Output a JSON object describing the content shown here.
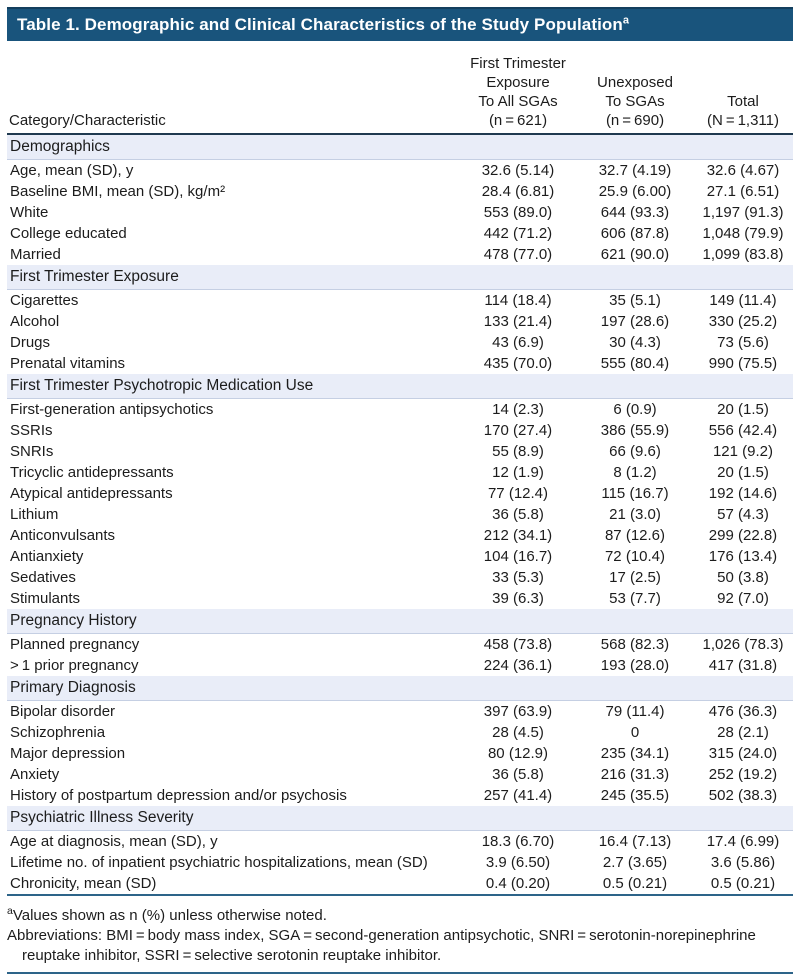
{
  "page": {
    "title": "Table 1. Demographic and Clinical Characteristics of the Study Population",
    "title_superscript": "a"
  },
  "colors": {
    "title_bar_bg": "#19547c",
    "title_text": "#ffffff",
    "section_band_bg": "#e9edf8",
    "section_band_border": "#c5cfe3",
    "header_rule": "#203a50",
    "footer_rule": "#2d6489",
    "text": "#1c1c1c"
  },
  "columns": {
    "category_header": "Category/Characteristic",
    "exposed_lines": [
      "First Trimester",
      "Exposure",
      "To All SGAs",
      "(n = 621)"
    ],
    "unexposed_lines": [
      "Unexposed",
      "To SGAs",
      "(n = 690)"
    ],
    "total_lines": [
      "Total",
      "(N = 1,311)"
    ]
  },
  "sections": [
    {
      "header": "Demographics",
      "rows": [
        {
          "label": "Age, mean (SD), y",
          "values": [
            "32.6 (5.14)",
            "32.7 (4.19)",
            "32.6 (4.67)"
          ]
        },
        {
          "label": "Baseline BMI, mean (SD), kg/m²",
          "values": [
            "28.4 (6.81)",
            "25.9 (6.00)",
            "27.1 (6.51)"
          ]
        },
        {
          "label": "White",
          "values": [
            "553 (89.0)",
            "644 (93.3)",
            "1,197 (91.3)"
          ]
        },
        {
          "label": "College educated",
          "values": [
            "442 (71.2)",
            "606 (87.8)",
            "1,048 (79.9)"
          ]
        },
        {
          "label": "Married",
          "values": [
            "478 (77.0)",
            "621 (90.0)",
            "1,099 (83.8)"
          ]
        }
      ]
    },
    {
      "header": "First Trimester Exposure",
      "rows": [
        {
          "label": "Cigarettes",
          "values": [
            "114 (18.4)",
            "35 (5.1)",
            "149 (11.4)"
          ]
        },
        {
          "label": "Alcohol",
          "values": [
            "133 (21.4)",
            "197 (28.6)",
            "330 (25.2)"
          ]
        },
        {
          "label": "Drugs",
          "values": [
            "43 (6.9)",
            "30 (4.3)",
            "73 (5.6)"
          ]
        },
        {
          "label": "Prenatal vitamins",
          "values": [
            "435 (70.0)",
            "555 (80.4)",
            "990 (75.5)"
          ]
        }
      ]
    },
    {
      "header": "First Trimester Psychotropic Medication Use",
      "rows": [
        {
          "label": "First-generation antipsychotics",
          "values": [
            "14 (2.3)",
            "6 (0.9)",
            "20 (1.5)"
          ]
        },
        {
          "label": "SSRIs",
          "values": [
            "170 (27.4)",
            "386 (55.9)",
            "556 (42.4)"
          ]
        },
        {
          "label": "SNRIs",
          "values": [
            "55 (8.9)",
            "66 (9.6)",
            "121 (9.2)"
          ]
        },
        {
          "label": "Tricyclic antidepressants",
          "values": [
            "12 (1.9)",
            "8 (1.2)",
            "20 (1.5)"
          ]
        },
        {
          "label": "Atypical antidepressants",
          "values": [
            "77 (12.4)",
            "115 (16.7)",
            "192 (14.6)"
          ]
        },
        {
          "label": "Lithium",
          "values": [
            "36 (5.8)",
            "21 (3.0)",
            "57 (4.3)"
          ]
        },
        {
          "label": "Anticonvulsants",
          "values": [
            "212 (34.1)",
            "87 (12.6)",
            "299 (22.8)"
          ]
        },
        {
          "label": "Antianxiety",
          "values": [
            "104 (16.7)",
            "72 (10.4)",
            "176 (13.4)"
          ]
        },
        {
          "label": "Sedatives",
          "values": [
            "33 (5.3)",
            "17 (2.5)",
            "50 (3.8)"
          ]
        },
        {
          "label": "Stimulants",
          "values": [
            "39 (6.3)",
            "53 (7.7)",
            "92 (7.0)"
          ]
        }
      ]
    },
    {
      "header": "Pregnancy History",
      "rows": [
        {
          "label": "Planned pregnancy",
          "values": [
            "458 (73.8)",
            "568 (82.3)",
            "1,026 (78.3)"
          ]
        },
        {
          "label": "> 1 prior pregnancy",
          "values": [
            "224 (36.1)",
            "193 (28.0)",
            "417 (31.8)"
          ]
        }
      ]
    },
    {
      "header": "Primary Diagnosis",
      "rows": [
        {
          "label": "Bipolar disorder",
          "values": [
            "397 (63.9)",
            "79 (11.4)",
            "476 (36.3)"
          ]
        },
        {
          "label": "Schizophrenia",
          "values": [
            "28 (4.5)",
            "0",
            "28 (2.1)"
          ]
        },
        {
          "label": "Major depression",
          "values": [
            "80 (12.9)",
            "235 (34.1)",
            "315 (24.0)"
          ]
        },
        {
          "label": "Anxiety",
          "values": [
            "36 (5.8)",
            "216 (31.3)",
            "252 (19.2)"
          ]
        },
        {
          "label": "History of postpartum depression and/or psychosis",
          "values": [
            "257 (41.4)",
            "245 (35.5)",
            "502 (38.3)"
          ]
        }
      ]
    },
    {
      "header": "Psychiatric Illness Severity",
      "rows": [
        {
          "label": "Age at diagnosis, mean (SD), y",
          "values": [
            "18.3 (6.70)",
            "16.4 (7.13)",
            "17.4 (6.99)"
          ]
        },
        {
          "label": "Lifetime no. of inpatient psychiatric hospitalizations, mean (SD)",
          "values": [
            "3.9 (6.50)",
            "2.7 (3.65)",
            "3.6 (5.86)"
          ]
        },
        {
          "label": "Chronicity, mean (SD)",
          "values": [
            "0.4 (0.20)",
            "0.5 (0.21)",
            "0.5 (0.21)"
          ]
        }
      ]
    }
  ],
  "footnotes": [
    {
      "marker": "a",
      "text": "Values shown as n (%) unless otherwise noted."
    },
    {
      "marker": "",
      "text": "Abbreviations: BMI = body mass index, SGA = second-generation antipsychotic, SNRI = serotonin-norepinephrine reuptake inhibitor, SSRI = selective serotonin reuptake inhibitor."
    }
  ]
}
